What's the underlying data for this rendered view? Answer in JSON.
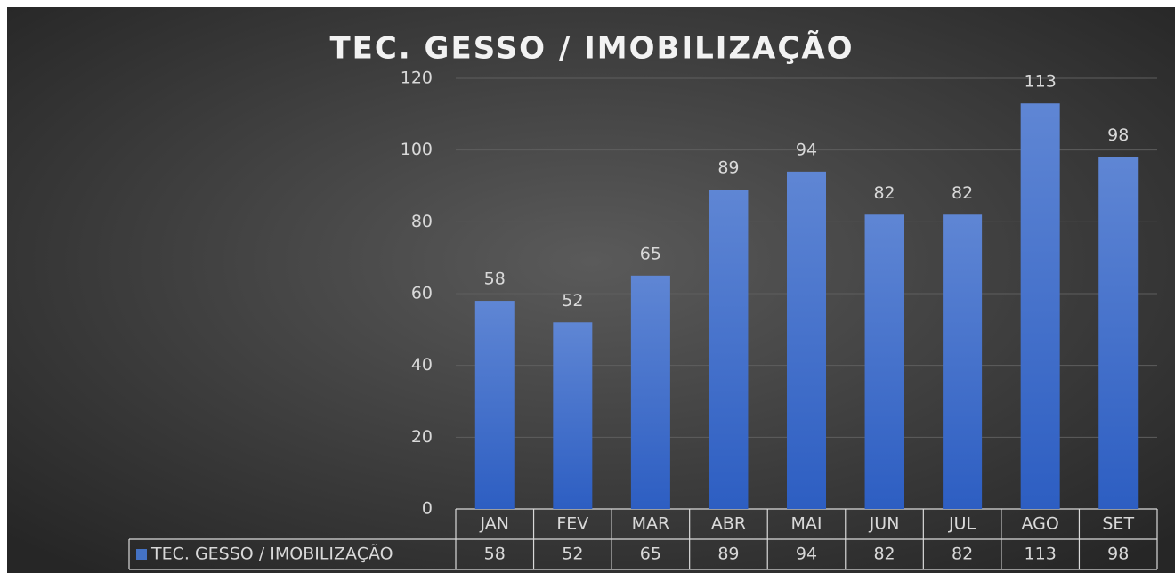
{
  "chart_data": {
    "type": "bar",
    "title": "TEC. GESSO / IMOBILIZAÇÃO",
    "categories": [
      "JAN",
      "FEV",
      "MAR",
      "ABR",
      "MAI",
      "JUN",
      "JUL",
      "AGO",
      "SET"
    ],
    "series": [
      {
        "name": "TEC. GESSO / IMOBILIZAÇÃO",
        "color": "#4472c4",
        "values": [
          58,
          52,
          65,
          89,
          94,
          82,
          82,
          113,
          98
        ]
      }
    ],
    "ylim": [
      0,
      120
    ],
    "yticks": [
      0,
      20,
      40,
      60,
      80,
      100,
      120
    ],
    "grid": true
  }
}
